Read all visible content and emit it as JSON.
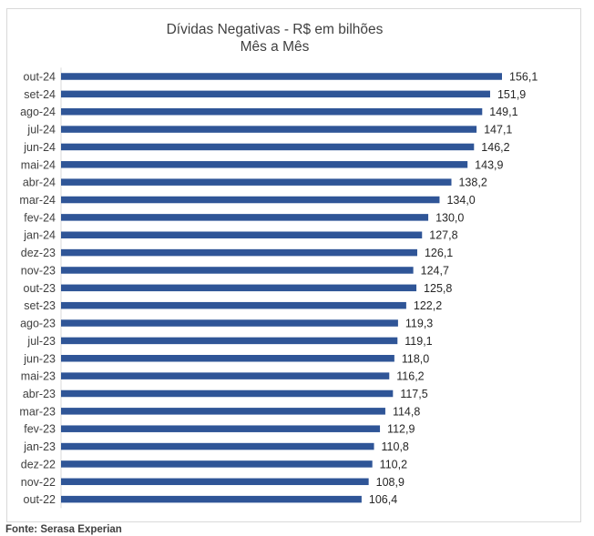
{
  "chart_data": {
    "type": "bar",
    "orientation": "horizontal",
    "title": "Dívidas Negativas - R$ em bilhões",
    "subtitle": "Mês a Mês",
    "categories": [
      "out-24",
      "set-24",
      "ago-24",
      "jul-24",
      "jun-24",
      "mai-24",
      "abr-24",
      "mar-24",
      "fev-24",
      "jan-24",
      "dez-23",
      "nov-23",
      "out-23",
      "set-23",
      "ago-23",
      "jul-23",
      "jun-23",
      "mai-23",
      "abr-23",
      "mar-23",
      "fev-23",
      "jan-23",
      "dez-22",
      "nov-22",
      "out-22"
    ],
    "values": [
      156.1,
      151.9,
      149.1,
      147.1,
      146.2,
      143.9,
      138.2,
      134.0,
      130.0,
      127.8,
      126.1,
      124.7,
      125.8,
      122.2,
      119.3,
      119.1,
      118.0,
      116.2,
      117.5,
      114.8,
      112.9,
      110.8,
      110.2,
      108.9,
      106.4
    ],
    "value_labels": [
      "156,1",
      "151,9",
      "149,1",
      "147,1",
      "146,2",
      "143,9",
      "138,2",
      "134,0",
      "130,0",
      "127,8",
      "126,1",
      "124,7",
      "125,8",
      "122,2",
      "119,3",
      "119,1",
      "118,0",
      "116,2",
      "117,5",
      "114,8",
      "112,9",
      "110,8",
      "110,2",
      "108,9",
      "106,4"
    ],
    "xlim": [
      0,
      156.1
    ],
    "grid": false,
    "legend": "none",
    "bar_color": "#2f5597",
    "label_color": "#262626",
    "source": "Fonte: Serasa Experian"
  }
}
